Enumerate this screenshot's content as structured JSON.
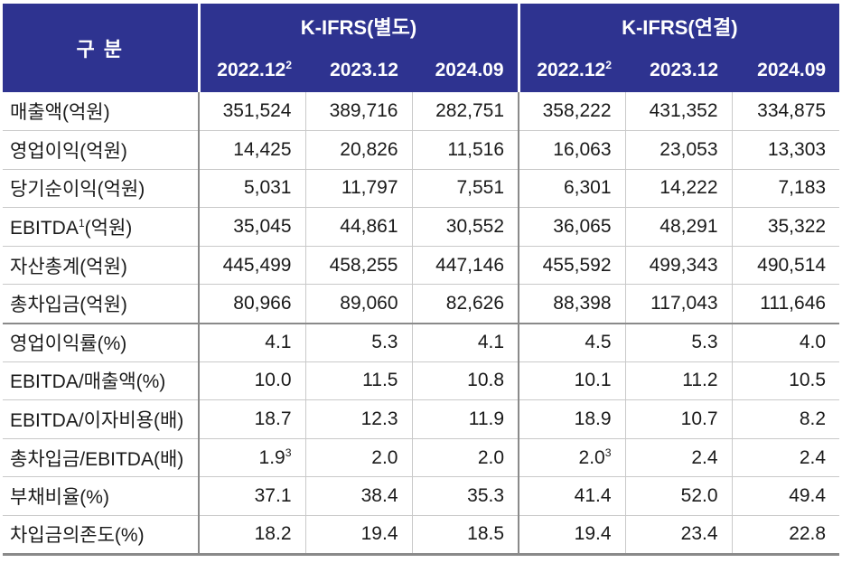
{
  "table": {
    "header": {
      "category_label": "구 분",
      "groups": [
        {
          "label": "K-IFRS(별도)",
          "years": [
            {
              "text": "2022.12",
              "sup": "2"
            },
            {
              "text": "2023.12",
              "sup": ""
            },
            {
              "text": "2024.09",
              "sup": ""
            }
          ]
        },
        {
          "label": "K-IFRS(연결)",
          "years": [
            {
              "text": "2022.12",
              "sup": "2"
            },
            {
              "text": "2023.12",
              "sup": ""
            },
            {
              "text": "2024.09",
              "sup": ""
            }
          ]
        }
      ]
    },
    "rows": [
      {
        "label": "매출액(억원)",
        "values": [
          "351,524",
          "389,716",
          "282,751",
          "358,222",
          "431,352",
          "334,875"
        ]
      },
      {
        "label": "영업이익(억원)",
        "values": [
          "14,425",
          "20,826",
          "11,516",
          "16,063",
          "23,053",
          "13,303"
        ]
      },
      {
        "label": "당기순이익(억원)",
        "values": [
          "5,031",
          "11,797",
          "7,551",
          "6,301",
          "14,222",
          "7,183"
        ]
      },
      {
        "label": "EBITDA",
        "label_sup": "1",
        "label_suffix": "(억원)",
        "values": [
          "35,045",
          "44,861",
          "30,552",
          "36,065",
          "48,291",
          "35,322"
        ]
      },
      {
        "label": "자산총계(억원)",
        "values": [
          "445,499",
          "458,255",
          "447,146",
          "455,592",
          "499,343",
          "490,514"
        ]
      },
      {
        "label": "총차입금(억원)",
        "values": [
          "80,966",
          "89,060",
          "82,626",
          "88,398",
          "117,043",
          "111,646"
        ]
      },
      {
        "label": "영업이익률(%)",
        "section_start": true,
        "values": [
          "4.1",
          "5.3",
          "4.1",
          "4.5",
          "5.3",
          "4.0"
        ]
      },
      {
        "label": "EBITDA/매출액(%)",
        "values": [
          "10.0",
          "11.5",
          "10.8",
          "10.1",
          "11.2",
          "10.5"
        ]
      },
      {
        "label": "EBITDA/이자비용(배)",
        "values": [
          "18.7",
          "12.3",
          "11.9",
          "18.9",
          "10.7",
          "8.2"
        ]
      },
      {
        "label": "총차입금/EBITDA(배)",
        "values": [
          "1.9",
          "2.0",
          "2.0",
          "2.0",
          "2.4",
          "2.4"
        ],
        "value_sups": [
          "3",
          "",
          "",
          "3",
          "",
          ""
        ]
      },
      {
        "label": "부채비율(%)",
        "values": [
          "37.1",
          "38.4",
          "35.3",
          "41.4",
          "52.0",
          "49.4"
        ]
      },
      {
        "label": "차입금의존도(%)",
        "values": [
          "18.2",
          "19.4",
          "18.5",
          "19.4",
          "23.4",
          "22.8"
        ]
      }
    ]
  },
  "colors": {
    "header_bg": "#2E3390",
    "header_text": "#FFFFFF",
    "body_text": "#1A1A1A",
    "grid_light": "#C9C9C9",
    "grid_dark": "#8A8A8A"
  }
}
